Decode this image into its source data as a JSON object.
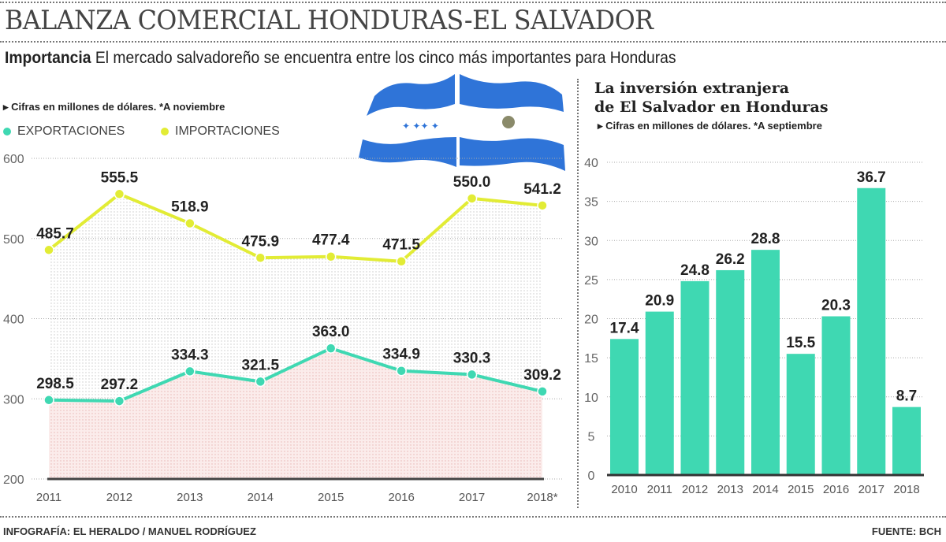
{
  "header": {
    "title": "BALANZA COMERCIAL HONDURAS-EL SALVADOR",
    "subtitle_bold": "Importancia",
    "subtitle": "El mercado salvadoreño se encuentra entre los cinco más importantes para Honduras"
  },
  "footer": {
    "credit": "INFOGRAFÍA: EL HERALDO / MANUEL RODRÍGUEZ",
    "source": "FUENTE: BCH"
  },
  "chart_data": [
    {
      "type": "line",
      "note": "Cifras en millones de dólares. *A noviembre",
      "categories": [
        "2011",
        "2012",
        "2013",
        "2014",
        "2015",
        "2016",
        "2017",
        "2018*"
      ],
      "series": [
        {
          "name": "EXPORTACIONES",
          "color": "#3fd8b2",
          "values": [
            298.5,
            297.2,
            334.3,
            321.5,
            363.0,
            334.9,
            330.3,
            309.2
          ],
          "labels": [
            "298.5",
            "297.2",
            "334.3",
            "321.5",
            "363.0",
            "334.9",
            "330.3",
            "309.2"
          ]
        },
        {
          "name": "IMPORTACIONES",
          "color": "#e2ec35",
          "values": [
            485.7,
            555.5,
            518.9,
            475.9,
            477.4,
            471.5,
            550.0,
            541.2
          ],
          "labels": [
            "485.7",
            "555.5",
            "518.9",
            "475.9",
            "477.4",
            "471.5",
            "550.0",
            "541.2"
          ]
        }
      ],
      "ylim": [
        200,
        600
      ],
      "yticks": [
        "200",
        "300",
        "400",
        "500",
        "600"
      ],
      "grid": true,
      "legend": "top-left"
    },
    {
      "type": "bar",
      "title_line1": "La inversión extranjera",
      "title_line2": "de El Salvador en Honduras",
      "note": "Cifras en millones de dólares. *A septiembre",
      "categories": [
        "2010",
        "2011",
        "2012",
        "2013",
        "2014",
        "2015",
        "2016",
        "2017",
        "2018"
      ],
      "values": [
        17.4,
        20.9,
        24.8,
        26.2,
        28.8,
        15.5,
        20.3,
        36.7,
        8.7
      ],
      "labels": [
        "17.4",
        "20.9",
        "24.8",
        "26.2",
        "28.8",
        "15.5",
        "20.3",
        "36.7",
        "8.7"
      ],
      "color": "#3fd8b2",
      "ylim": [
        0,
        40
      ],
      "yticks": [
        "0",
        "5",
        "10",
        "15",
        "20",
        "25",
        "30",
        "35",
        "40"
      ],
      "grid": true
    }
  ]
}
